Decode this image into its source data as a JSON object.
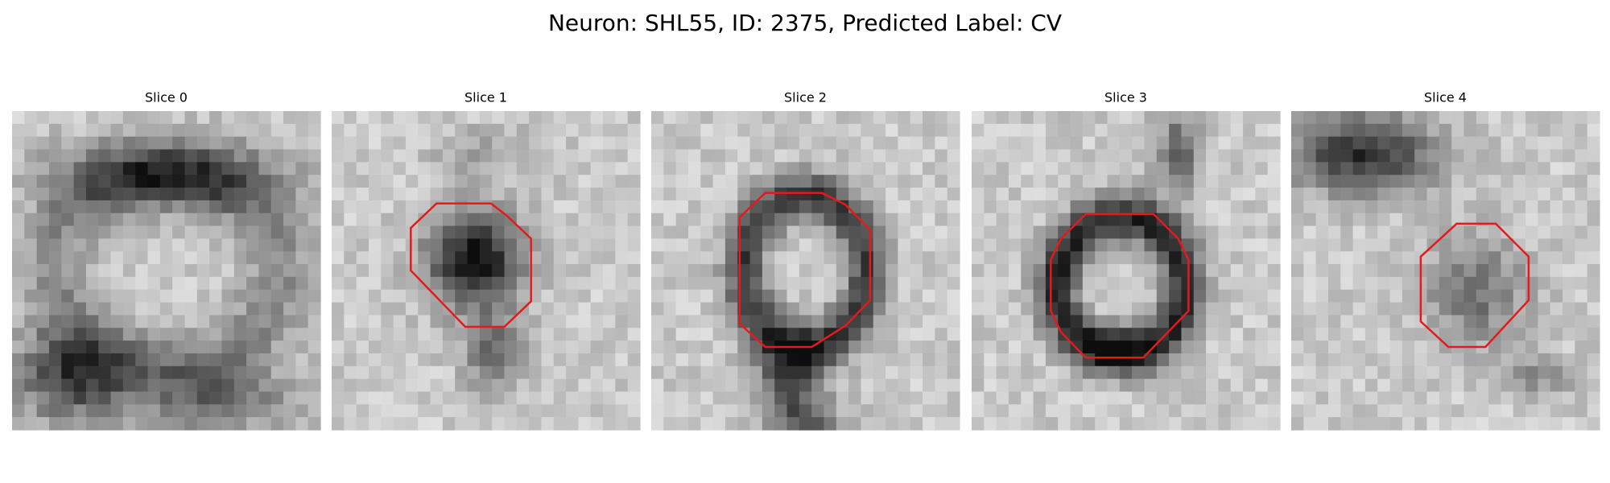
{
  "header": {
    "title": "Neuron: SHL55, ID: 2375, Predicted Label: CV"
  },
  "panels": [
    {
      "title": "Slice 0"
    },
    {
      "title": "Slice 1"
    },
    {
      "title": "Slice 2"
    },
    {
      "title": "Slice 3"
    },
    {
      "title": "Slice 4"
    }
  ]
}
